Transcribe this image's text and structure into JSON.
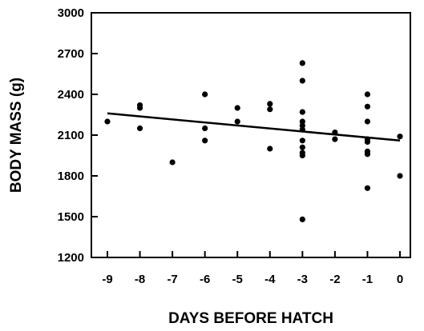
{
  "chart_data": {
    "type": "scatter",
    "xlabel": "DAYS BEFORE HATCH",
    "ylabel": "BODY MASS (g)",
    "xlim": [
      -9,
      0
    ],
    "ylim": [
      1200,
      3000
    ],
    "xticks": [
      -9,
      -8,
      -7,
      -6,
      -5,
      -4,
      -3,
      -2,
      -1,
      0
    ],
    "yticks": [
      1200,
      1500,
      1800,
      2100,
      2400,
      2700,
      3000
    ],
    "xtick_labels": [
      "-9",
      "-8",
      "-7",
      "-6",
      "-5",
      "-4",
      "-3",
      "-2",
      "-1",
      "0"
    ],
    "ytick_labels": [
      "1200",
      "1500",
      "1800",
      "2100",
      "2400",
      "2700",
      "3000"
    ],
    "grid": false,
    "points": [
      {
        "x": -9,
        "y": 2200
      },
      {
        "x": -8,
        "y": 2320
      },
      {
        "x": -8,
        "y": 2300
      },
      {
        "x": -8,
        "y": 2150
      },
      {
        "x": -7,
        "y": 1900
      },
      {
        "x": -6,
        "y": 2400
      },
      {
        "x": -6,
        "y": 2150
      },
      {
        "x": -6,
        "y": 2060
      },
      {
        "x": -5,
        "y": 2300
      },
      {
        "x": -5,
        "y": 2200
      },
      {
        "x": -4,
        "y": 2330
      },
      {
        "x": -4,
        "y": 2290
      },
      {
        "x": -4,
        "y": 2000
      },
      {
        "x": -3,
        "y": 2630
      },
      {
        "x": -3,
        "y": 2500
      },
      {
        "x": -3,
        "y": 2270
      },
      {
        "x": -3,
        "y": 2200
      },
      {
        "x": -3,
        "y": 2170
      },
      {
        "x": -3,
        "y": 2140
      },
      {
        "x": -3,
        "y": 2060
      },
      {
        "x": -3,
        "y": 2010
      },
      {
        "x": -3,
        "y": 1970
      },
      {
        "x": -3,
        "y": 1950
      },
      {
        "x": -3,
        "y": 1480
      },
      {
        "x": -2,
        "y": 2120
      },
      {
        "x": -2,
        "y": 2070
      },
      {
        "x": -1,
        "y": 2400
      },
      {
        "x": -1,
        "y": 2310
      },
      {
        "x": -1,
        "y": 2200
      },
      {
        "x": -1,
        "y": 2070
      },
      {
        "x": -1,
        "y": 2050
      },
      {
        "x": -1,
        "y": 1980
      },
      {
        "x": -1,
        "y": 1960
      },
      {
        "x": -1,
        "y": 1710
      },
      {
        "x": 0,
        "y": 2090
      },
      {
        "x": 0,
        "y": 1800
      }
    ],
    "trend_line": {
      "from": {
        "x": -9,
        "y": 2260
      },
      "to": {
        "x": 0,
        "y": 2060
      }
    },
    "colors": {
      "marker": "#000000",
      "line": "#000000",
      "axes": "#000000",
      "background": "#ffffff"
    }
  }
}
